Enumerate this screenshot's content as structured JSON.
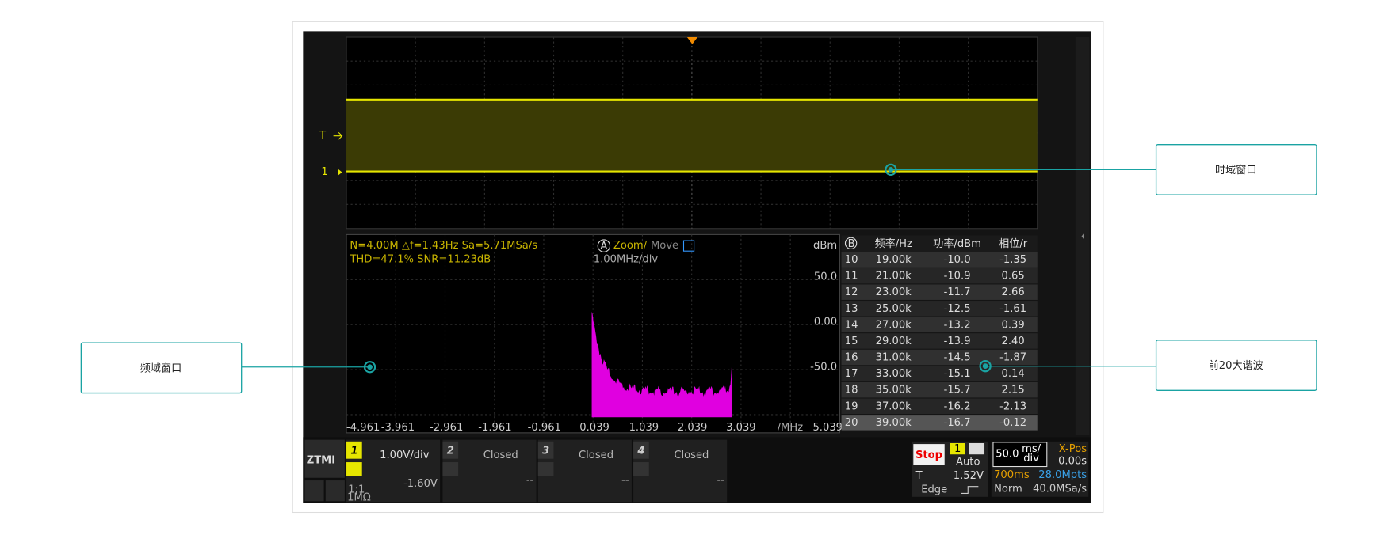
{
  "annotations": {
    "time_window": "时域窗口",
    "freq_window": "频域窗口",
    "top_harmonics": "前20大谐波"
  },
  "scope": {
    "trigger_marker": "T",
    "channel_marker": "1",
    "fft_info": [
      "N=4.00M  △f=1.43Hz  Sa=5.71MSa/s",
      "THD=47.1%  SNR=11.23dB"
    ],
    "cursor_a": "A",
    "zoom_label": "Zoom/",
    "move_label": "Move",
    "fft_scale": "1.00MHz/div",
    "y_unit": "dBm",
    "y_ticks": [
      "50.0",
      "0.00",
      "-50.0"
    ],
    "x_ticks": [
      "-4.961",
      "-3.961",
      "-2.961",
      "-1.961",
      "-0.961",
      "0.039",
      "1.039",
      "2.039",
      "3.039"
    ],
    "x_unit": "/MHz",
    "x_end": "5.039",
    "table": {
      "header": [
        "B",
        "频率/Hz",
        "功率/dBm",
        "相位/r"
      ],
      "rows": [
        [
          "10",
          "19.00k",
          "-10.0",
          "-1.35"
        ],
        [
          "11",
          "21.00k",
          "-10.9",
          "0.65"
        ],
        [
          "12",
          "23.00k",
          "-11.7",
          "2.66"
        ],
        [
          "13",
          "25.00k",
          "-12.5",
          "-1.61"
        ],
        [
          "14",
          "27.00k",
          "-13.2",
          "0.39"
        ],
        [
          "15",
          "29.00k",
          "-13.9",
          "2.40"
        ],
        [
          "16",
          "31.00k",
          "-14.5",
          "-1.87"
        ],
        [
          "17",
          "33.00k",
          "-15.1",
          "0.14"
        ],
        [
          "18",
          "35.00k",
          "-15.7",
          "2.15"
        ],
        [
          "19",
          "37.00k",
          "-16.2",
          "-2.13"
        ],
        [
          "20",
          "39.00k",
          "-16.7",
          "-0.12"
        ]
      ]
    }
  },
  "status_bar": {
    "logo": "ZTMI",
    "channels": [
      {
        "number": "1",
        "scale": "1.00V/div",
        "offset": "-1.60V",
        "probe": "1:1",
        "impedance": "1MΩ"
      },
      {
        "number": "2",
        "scale": "Closed",
        "offset": "--"
      },
      {
        "number": "3",
        "scale": "Closed",
        "offset": "--"
      },
      {
        "number": "4",
        "scale": "Closed",
        "offset": "--"
      }
    ],
    "run_state": "Stop",
    "trigger_source": "1",
    "trigger_mode": "Auto",
    "timebase": "50.0",
    "timebase_unit_top": "ms/",
    "timebase_unit_bottom": "div",
    "xpos_label": "X-Pos",
    "xpos_value": "0.00s",
    "trigger_label": "T",
    "trigger_level": "1.52V",
    "trigger_type": "Edge",
    "record_time": "700ms",
    "memory_depth": "28.0Mpts",
    "acq_mode": "Norm",
    "sample_rate": "40.0MSa/s"
  }
}
